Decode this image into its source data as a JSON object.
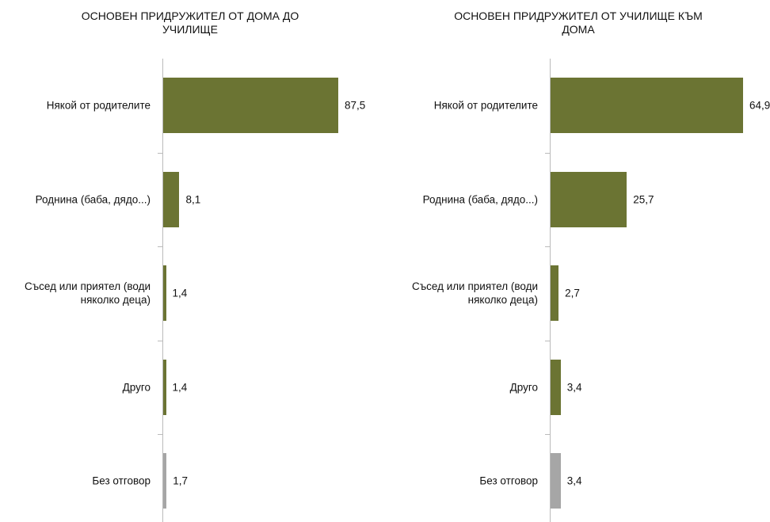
{
  "chart_data": [
    {
      "type": "bar",
      "orientation": "horizontal",
      "title": "ОСНОВЕН ПРИДРУЖИТЕЛ ОТ ДОМА ДО УЧИЛИЩЕ",
      "categories": [
        "Някой от родителите",
        "Роднина (баба, дядо...)",
        "Съсед или приятел (води няколко деца)",
        "Друго",
        "Без отговор"
      ],
      "values": [
        87.5,
        8.1,
        1.4,
        1.4,
        1.7
      ],
      "value_labels": [
        "87,5",
        "8,1",
        "1,4",
        "1,4",
        "1,7"
      ],
      "colors": [
        "#6b7433",
        "#6b7433",
        "#6b7433",
        "#6b7433",
        "#a6a6a6"
      ]
    },
    {
      "type": "bar",
      "orientation": "horizontal",
      "title": "ОСНОВЕН ПРИДРУЖИТЕЛ ОТ УЧИЛИЩЕ КЪМ ДОМА",
      "categories": [
        "Някой от родителите",
        "Роднина (баба, дядо...)",
        "Съсед или приятел (води няколко деца)",
        "Друго",
        "Без отговор"
      ],
      "values": [
        64.9,
        25.7,
        2.7,
        3.4,
        3.4
      ],
      "value_labels": [
        "64,9",
        "25,7",
        "2,7",
        "3,4",
        "3,4"
      ],
      "colors": [
        "#6b7433",
        "#6b7433",
        "#6b7433",
        "#6b7433",
        "#a6a6a6"
      ]
    }
  ]
}
